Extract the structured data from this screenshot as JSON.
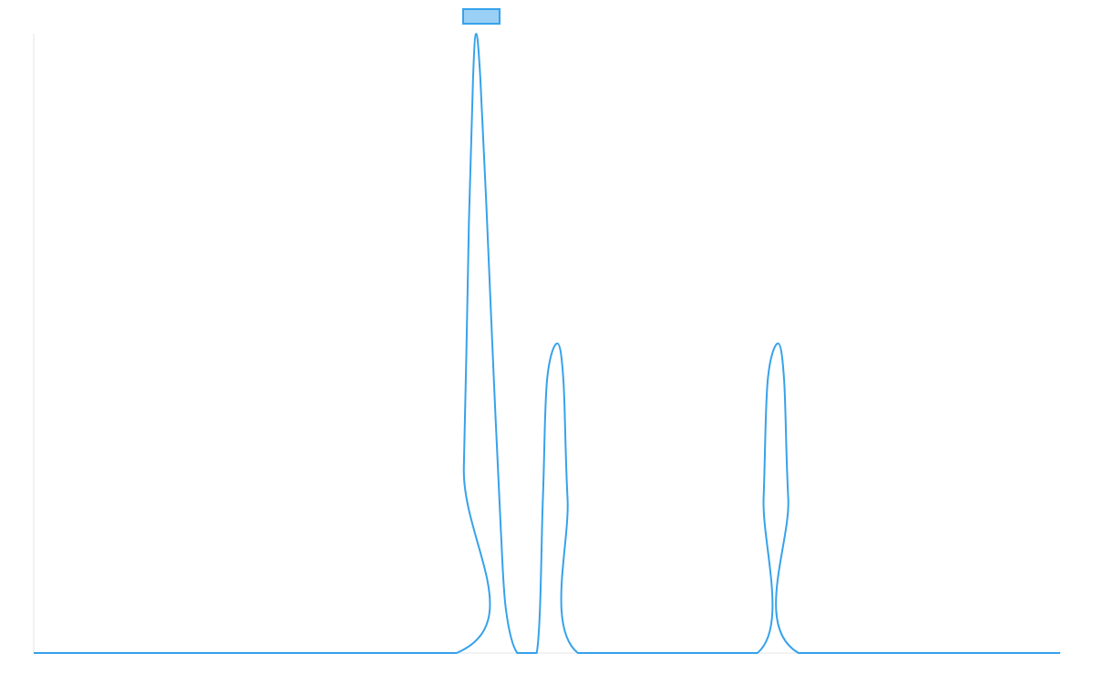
{
  "chart_data": {
    "type": "line",
    "xlim": [
      0,
      1
    ],
    "ylim": [
      0,
      1
    ],
    "grid": false,
    "legend": "top-center",
    "series": [
      {
        "name": "",
        "color": "#36a2eb",
        "fill": "#9ad0f5",
        "points": [
          [
            0.0,
            0
          ],
          [
            0.412,
            0
          ],
          [
            0.419,
            0.3
          ],
          [
            0.424,
            0.7
          ],
          [
            0.428,
            0.93
          ],
          [
            0.431,
            1.0
          ],
          [
            0.435,
            0.93
          ],
          [
            0.441,
            0.72
          ],
          [
            0.448,
            0.45
          ],
          [
            0.455,
            0.2
          ],
          [
            0.46,
            0.07
          ],
          [
            0.471,
            0
          ],
          [
            0.49,
            0
          ],
          [
            0.496,
            0.25
          ],
          [
            0.5,
            0.44
          ],
          [
            0.51,
            0.5
          ],
          [
            0.516,
            0.44
          ],
          [
            0.52,
            0.25
          ],
          [
            0.53,
            0
          ],
          [
            0.705,
            0
          ],
          [
            0.711,
            0.25
          ],
          [
            0.715,
            0.44
          ],
          [
            0.725,
            0.5
          ],
          [
            0.731,
            0.44
          ],
          [
            0.735,
            0.25
          ],
          [
            0.745,
            0
          ],
          [
            1.0,
            0
          ]
        ]
      }
    ]
  }
}
